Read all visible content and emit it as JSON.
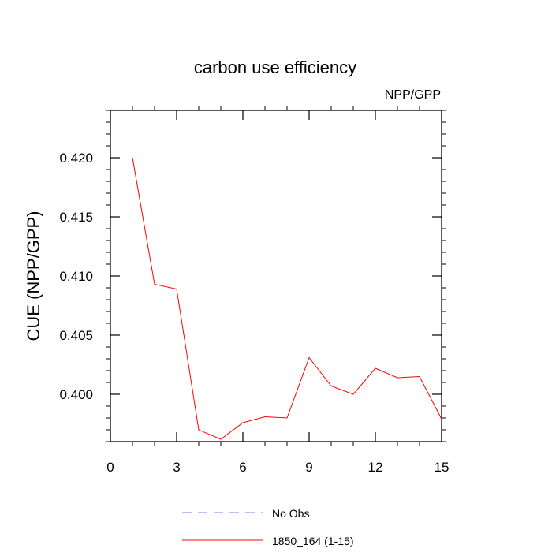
{
  "chart_data": {
    "type": "line",
    "title": "carbon use efficiency",
    "subtitle": "NPP/GPP",
    "xlabel": "",
    "ylabel": "CUE  (NPP/GPP)",
    "xlim": [
      0,
      15
    ],
    "ylim": [
      0.396,
      0.424
    ],
    "xticks": [
      0,
      3,
      6,
      9,
      12,
      15
    ],
    "xtick_labels": [
      "0",
      "3",
      "6",
      "9",
      "12",
      "15"
    ],
    "yticks": [
      0.4,
      0.405,
      0.41,
      0.415,
      0.42
    ],
    "ytick_labels": [
      "0.400",
      "0.405",
      "0.410",
      "0.415",
      "0.420"
    ],
    "grid": false,
    "legend_position": "bottom",
    "series": [
      {
        "name": "No Obs",
        "color": "#7a7aff",
        "dash": "dashed",
        "x": [],
        "values": []
      },
      {
        "name": "1850_164 (1-15)",
        "color": "#ff0000",
        "dash": "solid",
        "x": [
          1,
          2,
          3,
          4,
          5,
          6,
          7,
          8,
          9,
          10,
          11,
          12,
          13,
          14,
          15
        ],
        "values": [
          0.42,
          0.4093,
          0.4089,
          0.397,
          0.3962,
          0.3976,
          0.3981,
          0.398,
          0.4031,
          0.4007,
          0.4,
          0.4022,
          0.4014,
          0.4015,
          0.3979
        ]
      }
    ]
  }
}
